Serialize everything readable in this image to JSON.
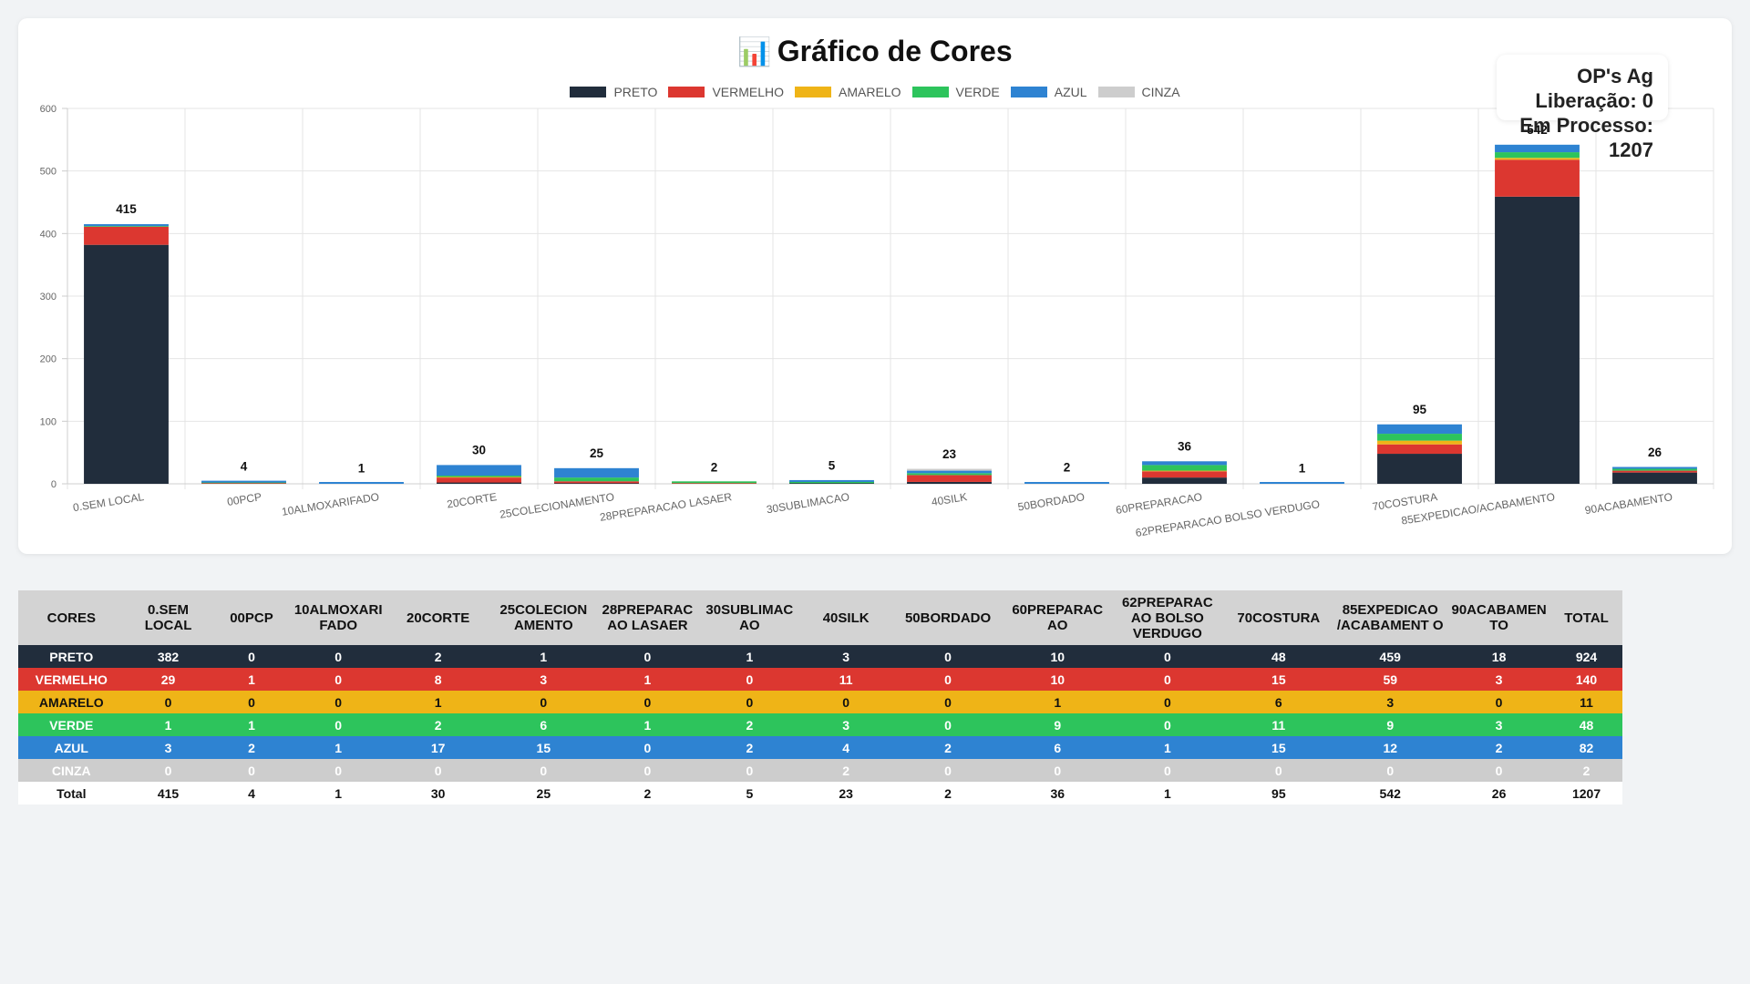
{
  "header": {
    "title_icon": "📊",
    "title": "Gráfico de Cores",
    "summary_line1": "OP's Ag Liberação: 0",
    "summary_line2": "Em Processo: 1207"
  },
  "chart_data": {
    "type": "bar",
    "stacked": true,
    "categories": [
      "0.SEM LOCAL",
      "00PCP",
      "10ALMOXARIFADO",
      "20CORTE",
      "25COLECIONAMENTO",
      "28PREPARACAO LASAER",
      "30SUBLIMACAO",
      "40SILK",
      "50BORDADO",
      "60PREPARACAO",
      "62PREPARACAO BOLSO VERDUGO",
      "70COSTURA",
      "85EXPEDICAO/ACABAMENTO",
      "90ACABAMENTO"
    ],
    "series": [
      {
        "name": "PRETO",
        "color": "#212d3c",
        "values": [
          382,
          0,
          0,
          2,
          1,
          0,
          1,
          3,
          0,
          10,
          0,
          48,
          459,
          18
        ]
      },
      {
        "name": "VERMELHO",
        "color": "#dc3730",
        "values": [
          29,
          1,
          0,
          8,
          3,
          1,
          0,
          11,
          0,
          10,
          0,
          15,
          59,
          3
        ]
      },
      {
        "name": "AMARELO",
        "color": "#efb417",
        "values": [
          0,
          0,
          0,
          1,
          0,
          0,
          0,
          0,
          0,
          1,
          0,
          6,
          3,
          0
        ]
      },
      {
        "name": "VERDE",
        "color": "#2dc45c",
        "values": [
          1,
          1,
          0,
          2,
          6,
          1,
          2,
          3,
          0,
          9,
          0,
          11,
          9,
          3
        ]
      },
      {
        "name": "AZUL",
        "color": "#2e83d2",
        "values": [
          3,
          2,
          1,
          17,
          15,
          0,
          2,
          4,
          2,
          6,
          1,
          15,
          12,
          2
        ]
      },
      {
        "name": "CINZA",
        "color": "#cdcdcd",
        "values": [
          0,
          0,
          0,
          0,
          0,
          0,
          0,
          2,
          0,
          0,
          0,
          0,
          0,
          0
        ]
      }
    ],
    "totals": [
      415,
      4,
      1,
      30,
      25,
      2,
      5,
      23,
      2,
      36,
      1,
      95,
      542,
      26
    ],
    "ylim": [
      0,
      600
    ],
    "yticks": [
      0,
      100,
      200,
      300,
      400,
      500,
      600
    ],
    "grid": true,
    "legend_position": "top"
  },
  "table": {
    "headers": [
      "CORES",
      "0.SEM LOCAL",
      "00PCP",
      "10ALMOXARI FADO",
      "20CORTE",
      "25COLECION AMENTO",
      "28PREPARAC AO LASAER",
      "30SUBLIMAC AO",
      "40SILK",
      "50BORDADO",
      "60PREPARAC AO",
      "62PREPARAC AO BOLSO VERDUGO",
      "70COSTURA",
      "85EXPEDICAO /ACABAMENT O",
      "90ACABAMEN TO",
      "TOTAL"
    ],
    "rows": [
      {
        "label": "PRETO",
        "values": [
          "382",
          "0",
          "0",
          "2",
          "1",
          "0",
          "1",
          "3",
          "0",
          "10",
          "0",
          "48",
          "459",
          "18",
          "924"
        ]
      },
      {
        "label": "VERMELHO",
        "values": [
          "29",
          "1",
          "0",
          "8",
          "3",
          "1",
          "0",
          "11",
          "0",
          "10",
          "0",
          "15",
          "59",
          "3",
          "140"
        ]
      },
      {
        "label": "AMARELO",
        "values": [
          "0",
          "0",
          "0",
          "1",
          "0",
          "0",
          "0",
          "0",
          "0",
          "1",
          "0",
          "6",
          "3",
          "0",
          "11"
        ]
      },
      {
        "label": "VERDE",
        "values": [
          "1",
          "1",
          "0",
          "2",
          "6",
          "1",
          "2",
          "3",
          "0",
          "9",
          "0",
          "11",
          "9",
          "3",
          "48"
        ]
      },
      {
        "label": "AZUL",
        "values": [
          "3",
          "2",
          "1",
          "17",
          "15",
          "0",
          "2",
          "4",
          "2",
          "6",
          "1",
          "15",
          "12",
          "2",
          "82"
        ]
      },
      {
        "label": "CINZA",
        "values": [
          "0",
          "0",
          "0",
          "0",
          "0",
          "0",
          "0",
          "2",
          "0",
          "0",
          "0",
          "0",
          "0",
          "0",
          "2"
        ]
      },
      {
        "label": "Total",
        "values": [
          "415",
          "4",
          "1",
          "30",
          "25",
          "2",
          "5",
          "23",
          "2",
          "36",
          "1",
          "95",
          "542",
          "26",
          "1207"
        ]
      }
    ]
  }
}
